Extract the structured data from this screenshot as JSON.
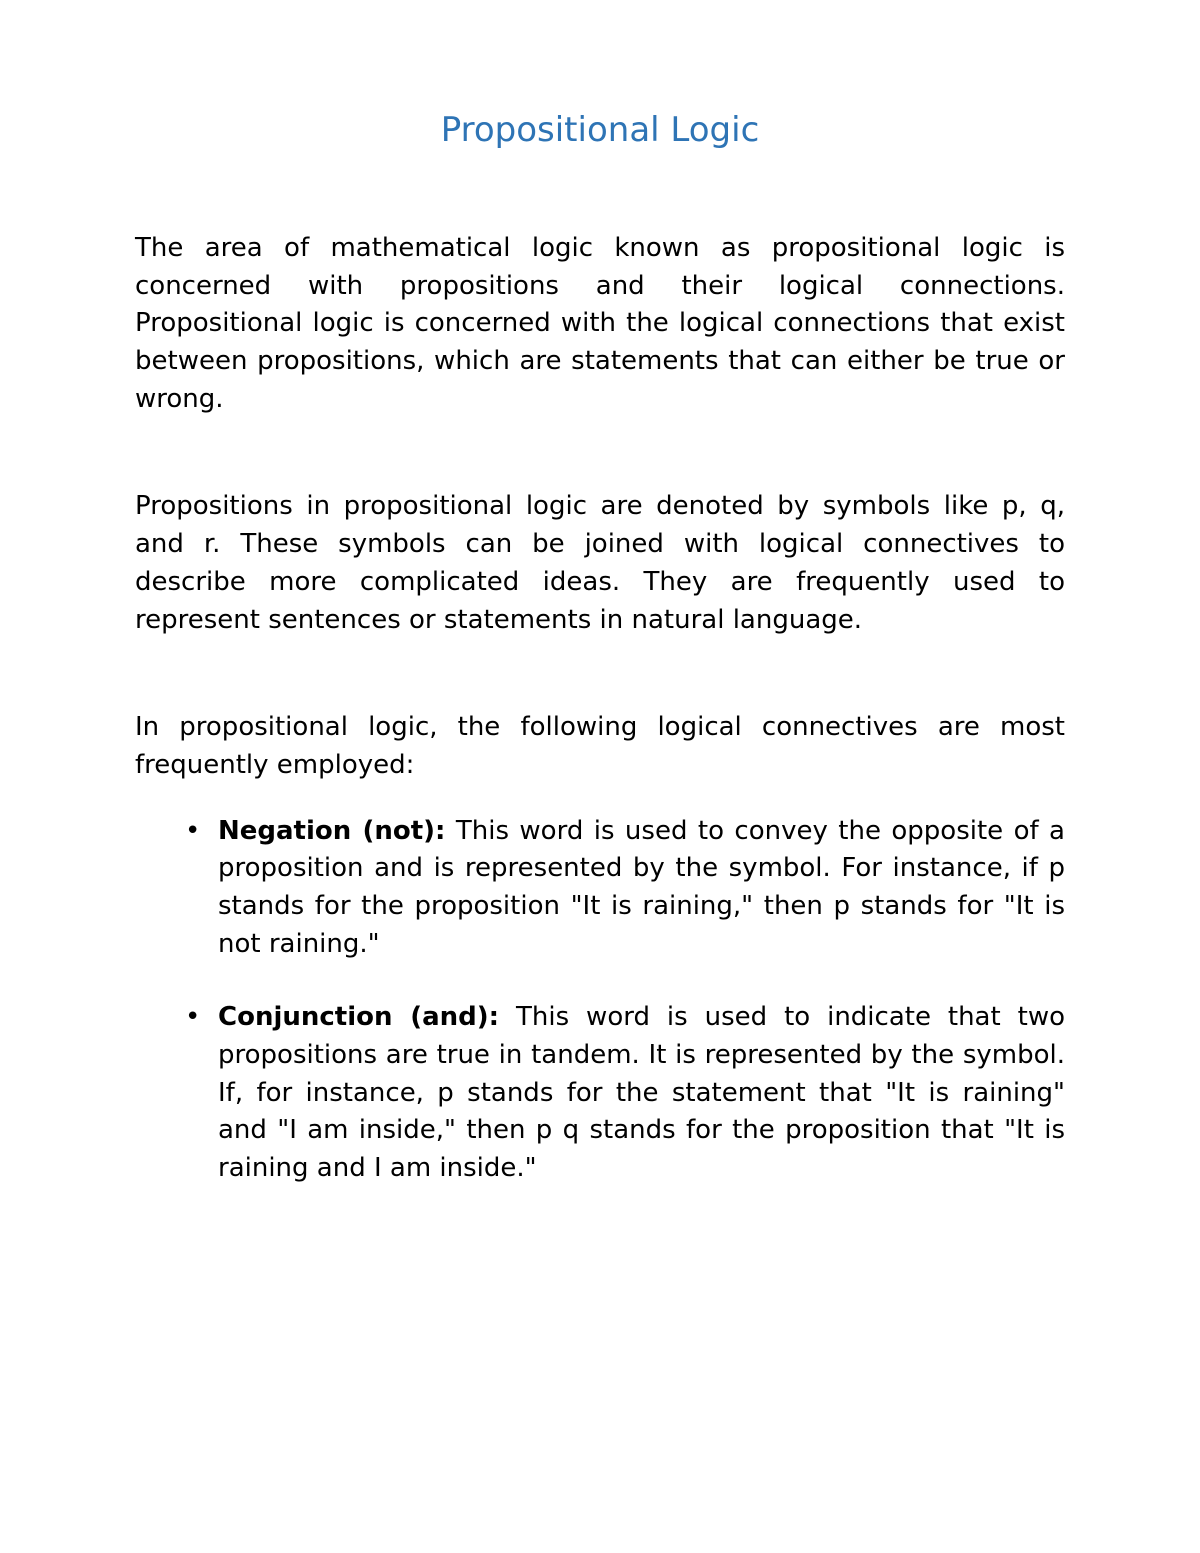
{
  "title": "Propositional Logic",
  "title_color": "#2e74b5",
  "title_fontsize": 34,
  "body_color": "#000000",
  "body_fontsize": 26,
  "background_color": "#ffffff",
  "paragraphs": {
    "p1": "The area of mathematical logic known as propositional logic is concerned with propositions and their logical connections. Propositional logic is concerned with the logical connections that exist between propositions, which are statements that can either be true or wrong.",
    "p2": "Propositions in propositional logic are denoted by symbols like p, q, and r. These symbols can be joined with logical connectives to describe more complicated ideas. They are frequently used to represent sentences or statements in natural language.",
    "p3": "In propositional logic, the following logical connectives are most frequently employed:"
  },
  "list_items": {
    "item1_label": "Negation (not):",
    "item1_text": " This word is used to convey the opposite of a proposition and is represented by the symbol. For instance, if p stands for the proposition \"It is raining,\" then p stands for \"It is not raining.\"",
    "item2_label": "Conjunction (and):",
    "item2_text": " This word is used to indicate that two propositions are true in tandem. It is represented by the symbol. If, for instance, p stands for the statement that \"It is raining\" and \"I am inside,\" then p q stands for the proposition that \"It is raining and I am inside.\""
  }
}
